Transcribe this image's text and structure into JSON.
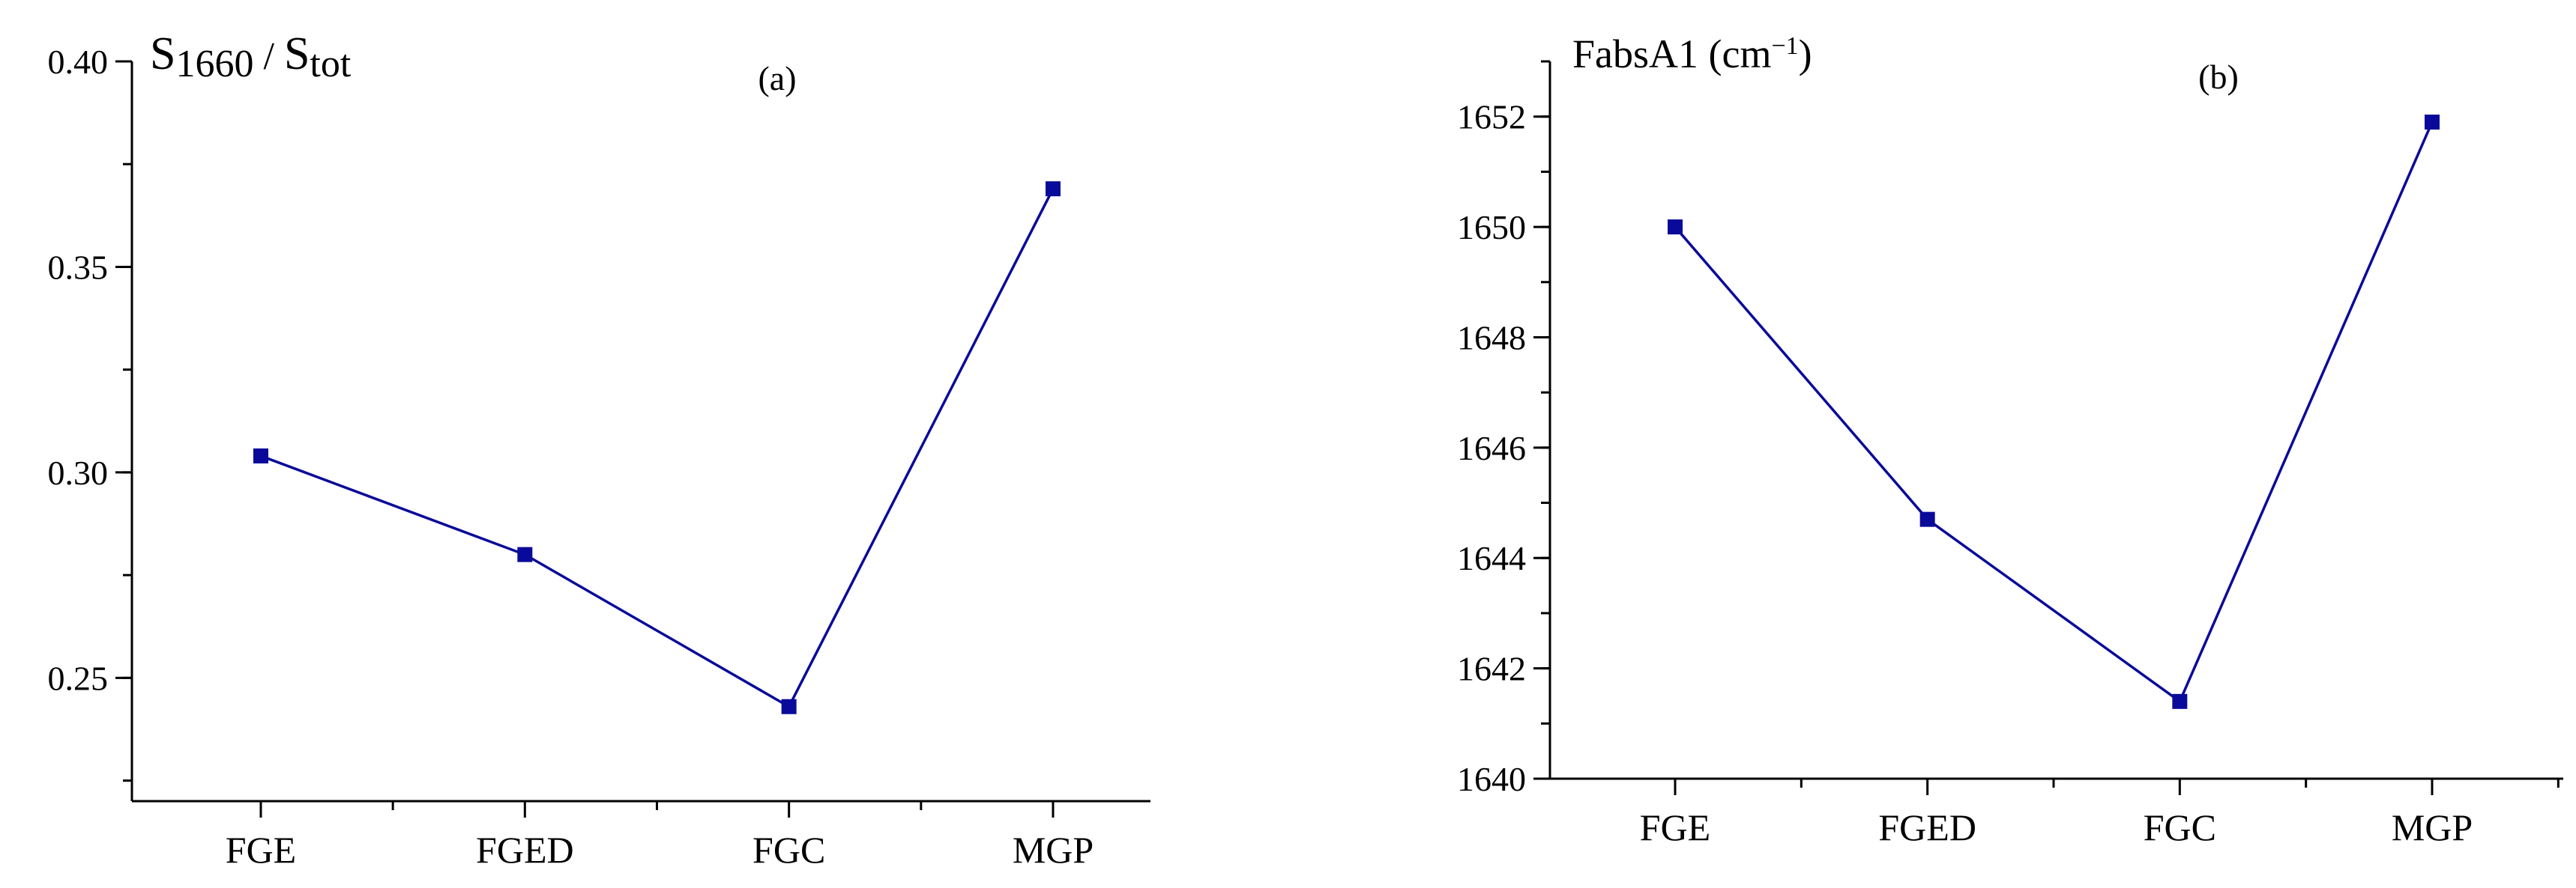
{
  "chart_data": [
    {
      "id": "a",
      "type": "line",
      "panel_label": "(a)",
      "ylabel": {
        "main": "S",
        "sub1": "1660",
        "sep": " / ",
        "main2": "S",
        "sub2": "tot"
      },
      "categories": [
        "FGE",
        "FGED",
        "FGC",
        "MGP"
      ],
      "series": [
        {
          "values": [
            0.304,
            0.28,
            0.243,
            0.369
          ],
          "color": "#0a0a9a",
          "marker": "square"
        }
      ],
      "ylim": [
        0.22,
        0.4
      ],
      "yticks": [
        0.25,
        0.3,
        0.35,
        0.4
      ],
      "ytick_labels": [
        "0.25",
        "0.30",
        "0.35",
        "0.40"
      ],
      "minor_tick_step": 0.025,
      "grid": false
    },
    {
      "id": "b",
      "type": "line",
      "panel_label": "(b)",
      "ylabel": {
        "text": "FabsA1 (cm",
        "sup": "−1",
        "close": ")"
      },
      "categories": [
        "FGE",
        "FGED",
        "FGC",
        "MGP"
      ],
      "series": [
        {
          "values": [
            1650.0,
            1644.7,
            1641.4,
            1651.9
          ],
          "color": "#0a0a9a",
          "marker": "square"
        }
      ],
      "ylim": [
        1640,
        1653
      ],
      "yticks": [
        1640,
        1642,
        1644,
        1646,
        1648,
        1650,
        1652
      ],
      "ytick_labels": [
        "1640",
        "1642",
        "1644",
        "1646",
        "1648",
        "1650",
        "1652"
      ],
      "minor_tick_step": 1,
      "grid": false
    }
  ]
}
